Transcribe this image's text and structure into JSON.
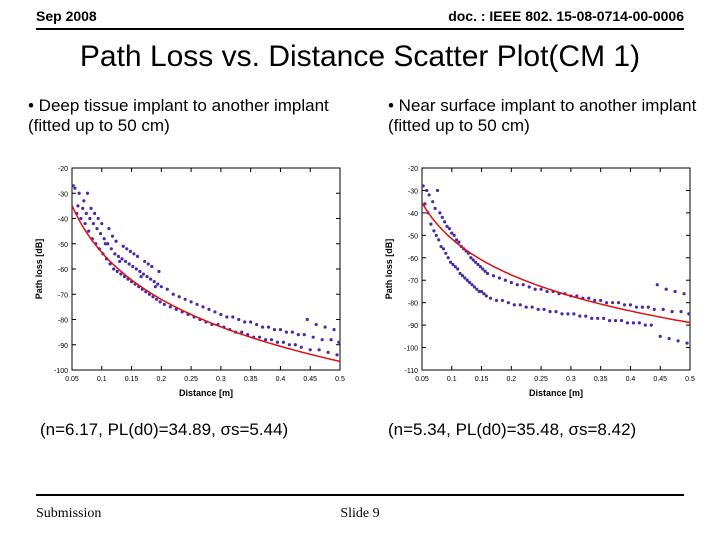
{
  "header": {
    "date": "Sep 2008",
    "doc": "doc. : IEEE 802. 15-08-0714-00-0006"
  },
  "title": "Path Loss vs. Distance Scatter Plot(CM 1)",
  "left": {
    "bullet": "• Deep tissue implant to another implant  (fitted up to 50 cm)",
    "caption": "(n=6.17, PL(d0)=34.89, σs=5.44)"
  },
  "right": {
    "bullet": "• Near surface implant to another implant (fitted up to 50 cm)",
    "caption": "(n=5.34, PL(d0)=35.48, σs=8.42)"
  },
  "footer": {
    "left": "Submission",
    "slide": "Slide 9"
  },
  "chart_common": {
    "xlabel": "Distance [m]",
    "ylabel": "Path loss [dB]",
    "label_fontsize": 9,
    "tick_fontsize": 7,
    "xlim": [
      0.05,
      0.5
    ],
    "xticks": [
      0.05,
      0.1,
      0.15,
      0.2,
      0.25,
      0.3,
      0.35,
      0.4,
      0.45,
      0.5
    ],
    "background_color": "#ffffff",
    "axis_color": "#000000",
    "grid": false,
    "marker_color": "#4a2aa8",
    "marker_size": 1.6,
    "curve_color": "#e01010",
    "curve_width": 1.5
  },
  "chart_left": {
    "type": "scatter+curve",
    "ylim": [
      -100,
      -20
    ],
    "yticks": [
      -100,
      -90,
      -80,
      -70,
      -60,
      -50,
      -40,
      -30,
      -20
    ],
    "curve": {
      "n": 6.17,
      "d0": 0.05,
      "pl0": -34.89
    },
    "points": [
      [
        0.052,
        -27
      ],
      [
        0.055,
        -28
      ],
      [
        0.058,
        -38
      ],
      [
        0.06,
        -35
      ],
      [
        0.062,
        -30
      ],
      [
        0.065,
        -40
      ],
      [
        0.068,
        -36
      ],
      [
        0.07,
        -33
      ],
      [
        0.072,
        -42
      ],
      [
        0.074,
        -38
      ],
      [
        0.076,
        -30
      ],
      [
        0.078,
        -45
      ],
      [
        0.08,
        -40
      ],
      [
        0.082,
        -36
      ],
      [
        0.084,
        -48
      ],
      [
        0.086,
        -42
      ],
      [
        0.088,
        -38
      ],
      [
        0.09,
        -50
      ],
      [
        0.092,
        -44
      ],
      [
        0.094,
        -40
      ],
      [
        0.096,
        -52
      ],
      [
        0.098,
        -46
      ],
      [
        0.1,
        -42
      ],
      [
        0.102,
        -54
      ],
      [
        0.104,
        -48
      ],
      [
        0.106,
        -50
      ],
      [
        0.108,
        -56
      ],
      [
        0.11,
        -50
      ],
      [
        0.112,
        -44
      ],
      [
        0.114,
        -58
      ],
      [
        0.116,
        -52
      ],
      [
        0.118,
        -47
      ],
      [
        0.12,
        -60
      ],
      [
        0.122,
        -54
      ],
      [
        0.124,
        -49
      ],
      [
        0.126,
        -61
      ],
      [
        0.128,
        -55
      ],
      [
        0.13,
        -57
      ],
      [
        0.132,
        -62
      ],
      [
        0.134,
        -56
      ],
      [
        0.136,
        -51
      ],
      [
        0.138,
        -63
      ],
      [
        0.14,
        -57
      ],
      [
        0.142,
        -52
      ],
      [
        0.144,
        -64
      ],
      [
        0.146,
        -58
      ],
      [
        0.148,
        -53
      ],
      [
        0.15,
        -65
      ],
      [
        0.152,
        -59
      ],
      [
        0.154,
        -54
      ],
      [
        0.156,
        -66
      ],
      [
        0.158,
        -60
      ],
      [
        0.16,
        -55
      ],
      [
        0.162,
        -67
      ],
      [
        0.164,
        -61
      ],
      [
        0.166,
        -63
      ],
      [
        0.168,
        -68
      ],
      [
        0.17,
        -62
      ],
      [
        0.172,
        -57
      ],
      [
        0.174,
        -69
      ],
      [
        0.176,
        -63
      ],
      [
        0.178,
        -58
      ],
      [
        0.18,
        -70
      ],
      [
        0.182,
        -64
      ],
      [
        0.184,
        -59
      ],
      [
        0.186,
        -71
      ],
      [
        0.188,
        -65
      ],
      [
        0.19,
        -67
      ],
      [
        0.192,
        -72
      ],
      [
        0.194,
        -66
      ],
      [
        0.196,
        -61
      ],
      [
        0.198,
        -73
      ],
      [
        0.2,
        -67
      ],
      [
        0.205,
        -74
      ],
      [
        0.21,
        -68
      ],
      [
        0.215,
        -75
      ],
      [
        0.22,
        -70
      ],
      [
        0.225,
        -76
      ],
      [
        0.23,
        -71
      ],
      [
        0.235,
        -77
      ],
      [
        0.24,
        -72
      ],
      [
        0.245,
        -78
      ],
      [
        0.25,
        -73
      ],
      [
        0.255,
        -79
      ],
      [
        0.26,
        -74
      ],
      [
        0.265,
        -80
      ],
      [
        0.27,
        -75
      ],
      [
        0.275,
        -81
      ],
      [
        0.28,
        -76
      ],
      [
        0.285,
        -82
      ],
      [
        0.29,
        -77
      ],
      [
        0.295,
        -82
      ],
      [
        0.3,
        -78
      ],
      [
        0.305,
        -83
      ],
      [
        0.31,
        -79
      ],
      [
        0.315,
        -84
      ],
      [
        0.32,
        -79
      ],
      [
        0.325,
        -85
      ],
      [
        0.33,
        -80
      ],
      [
        0.335,
        -85
      ],
      [
        0.34,
        -81
      ],
      [
        0.345,
        -86
      ],
      [
        0.35,
        -81
      ],
      [
        0.355,
        -87
      ],
      [
        0.36,
        -82
      ],
      [
        0.365,
        -87
      ],
      [
        0.37,
        -83
      ],
      [
        0.375,
        -88
      ],
      [
        0.38,
        -83
      ],
      [
        0.385,
        -88
      ],
      [
        0.39,
        -84
      ],
      [
        0.395,
        -89
      ],
      [
        0.4,
        -84
      ],
      [
        0.405,
        -89
      ],
      [
        0.41,
        -85
      ],
      [
        0.415,
        -90
      ],
      [
        0.42,
        -85
      ],
      [
        0.425,
        -90
      ],
      [
        0.43,
        -86
      ],
      [
        0.435,
        -91
      ],
      [
        0.44,
        -86
      ],
      [
        0.445,
        -80
      ],
      [
        0.45,
        -92
      ],
      [
        0.455,
        -87
      ],
      [
        0.46,
        -82
      ],
      [
        0.465,
        -92
      ],
      [
        0.47,
        -88
      ],
      [
        0.475,
        -83
      ],
      [
        0.48,
        -93
      ],
      [
        0.485,
        -88
      ],
      [
        0.49,
        -84
      ],
      [
        0.495,
        -94
      ],
      [
        0.498,
        -89
      ]
    ]
  },
  "chart_right": {
    "type": "scatter+curve",
    "ylim": [
      -110,
      -20
    ],
    "yticks": [
      -110,
      -100,
      -90,
      -80,
      -70,
      -60,
      -50,
      -40,
      -30,
      -20
    ],
    "curve": {
      "n": 5.34,
      "d0": 0.05,
      "pl0": -35.48
    },
    "points": [
      [
        0.052,
        -28
      ],
      [
        0.055,
        -36
      ],
      [
        0.058,
        -30
      ],
      [
        0.06,
        -40
      ],
      [
        0.062,
        -32
      ],
      [
        0.065,
        -45
      ],
      [
        0.068,
        -35
      ],
      [
        0.07,
        -48
      ],
      [
        0.072,
        -38
      ],
      [
        0.074,
        -50
      ],
      [
        0.076,
        -30
      ],
      [
        0.078,
        -52
      ],
      [
        0.08,
        -40
      ],
      [
        0.082,
        -55
      ],
      [
        0.084,
        -42
      ],
      [
        0.086,
        -56
      ],
      [
        0.088,
        -44
      ],
      [
        0.09,
        -58
      ],
      [
        0.092,
        -46
      ],
      [
        0.094,
        -60
      ],
      [
        0.096,
        -47
      ],
      [
        0.098,
        -62
      ],
      [
        0.1,
        -49
      ],
      [
        0.102,
        -63
      ],
      [
        0.104,
        -50
      ],
      [
        0.106,
        -64
      ],
      [
        0.108,
        -52
      ],
      [
        0.11,
        -65
      ],
      [
        0.112,
        -53
      ],
      [
        0.114,
        -67
      ],
      [
        0.116,
        -55
      ],
      [
        0.118,
        -68
      ],
      [
        0.12,
        -56
      ],
      [
        0.122,
        -69
      ],
      [
        0.124,
        -57
      ],
      [
        0.126,
        -70
      ],
      [
        0.128,
        -58
      ],
      [
        0.13,
        -71
      ],
      [
        0.132,
        -60
      ],
      [
        0.134,
        -72
      ],
      [
        0.136,
        -61
      ],
      [
        0.138,
        -73
      ],
      [
        0.14,
        -62
      ],
      [
        0.142,
        -74
      ],
      [
        0.144,
        -63
      ],
      [
        0.146,
        -75
      ],
      [
        0.148,
        -64
      ],
      [
        0.15,
        -75
      ],
      [
        0.152,
        -65
      ],
      [
        0.154,
        -76
      ],
      [
        0.156,
        -66
      ],
      [
        0.158,
        -77
      ],
      [
        0.16,
        -67
      ],
      [
        0.165,
        -78
      ],
      [
        0.17,
        -68
      ],
      [
        0.175,
        -79
      ],
      [
        0.18,
        -69
      ],
      [
        0.185,
        -79
      ],
      [
        0.19,
        -70
      ],
      [
        0.195,
        -80
      ],
      [
        0.2,
        -71
      ],
      [
        0.205,
        -81
      ],
      [
        0.21,
        -72
      ],
      [
        0.215,
        -81
      ],
      [
        0.22,
        -72
      ],
      [
        0.225,
        -82
      ],
      [
        0.23,
        -73
      ],
      [
        0.235,
        -82
      ],
      [
        0.24,
        -74
      ],
      [
        0.245,
        -83
      ],
      [
        0.25,
        -74
      ],
      [
        0.255,
        -83
      ],
      [
        0.26,
        -75
      ],
      [
        0.265,
        -84
      ],
      [
        0.27,
        -75
      ],
      [
        0.275,
        -84
      ],
      [
        0.28,
        -76
      ],
      [
        0.285,
        -85
      ],
      [
        0.29,
        -76
      ],
      [
        0.295,
        -85
      ],
      [
        0.3,
        -77
      ],
      [
        0.305,
        -85
      ],
      [
        0.31,
        -77
      ],
      [
        0.315,
        -86
      ],
      [
        0.32,
        -78
      ],
      [
        0.325,
        -86
      ],
      [
        0.33,
        -78
      ],
      [
        0.335,
        -87
      ],
      [
        0.34,
        -79
      ],
      [
        0.345,
        -87
      ],
      [
        0.35,
        -79
      ],
      [
        0.355,
        -87
      ],
      [
        0.36,
        -80
      ],
      [
        0.365,
        -88
      ],
      [
        0.37,
        -80
      ],
      [
        0.375,
        -88
      ],
      [
        0.38,
        -80
      ],
      [
        0.385,
        -88
      ],
      [
        0.39,
        -81
      ],
      [
        0.395,
        -89
      ],
      [
        0.4,
        -81
      ],
      [
        0.405,
        -89
      ],
      [
        0.41,
        -82
      ],
      [
        0.415,
        -89
      ],
      [
        0.42,
        -82
      ],
      [
        0.425,
        -90
      ],
      [
        0.43,
        -82
      ],
      [
        0.435,
        -90
      ],
      [
        0.44,
        -83
      ],
      [
        0.445,
        -72
      ],
      [
        0.45,
        -95
      ],
      [
        0.455,
        -83
      ],
      [
        0.46,
        -74
      ],
      [
        0.465,
        -96
      ],
      [
        0.47,
        -84
      ],
      [
        0.475,
        -75
      ],
      [
        0.48,
        -97
      ],
      [
        0.485,
        -84
      ],
      [
        0.49,
        -76
      ],
      [
        0.495,
        -98
      ],
      [
        0.498,
        -85
      ]
    ]
  }
}
